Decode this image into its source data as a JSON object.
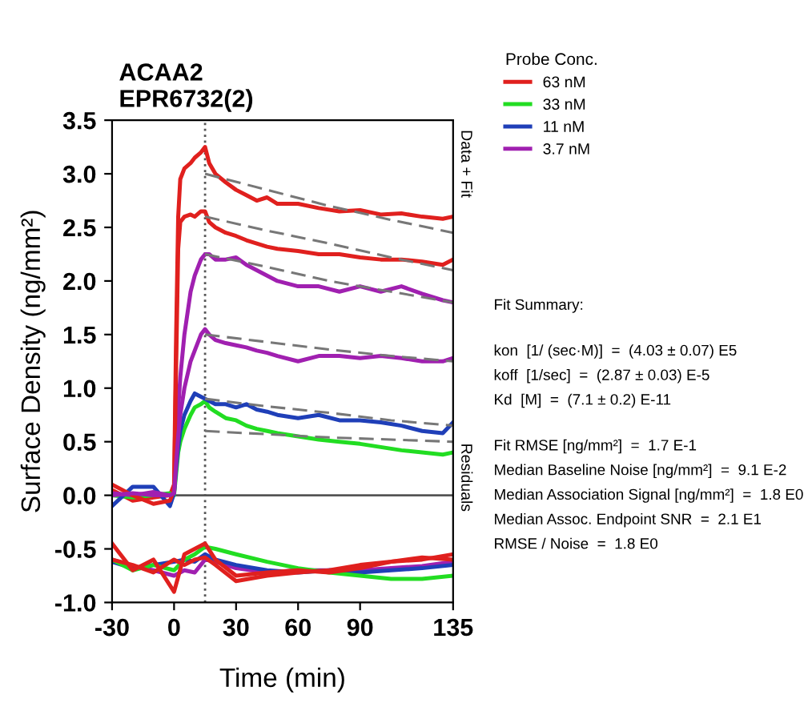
{
  "chart_data": {
    "type": "line",
    "title": "ACAA2\nEPR6732(2)",
    "xlabel": "Time (min)",
    "ylabel": "Surface Density (ng/mm²)",
    "legend_title": "Probe Conc.",
    "legend": "right",
    "grid": false,
    "marker": "none",
    "xlim": [
      -30,
      135
    ],
    "xticks": [
      -30,
      0,
      30,
      60,
      90,
      135
    ],
    "ylim": [
      -1.0,
      3.5
    ],
    "yticks": [
      {
        "value": -1.0,
        "label": "-1.0"
      },
      {
        "value": -0.5,
        "label": "-0.5"
      },
      {
        "value": 0.0,
        "label": "0.0"
      },
      {
        "value": 0.5,
        "label": "0.5"
      },
      {
        "value": 1.0,
        "label": "1.0"
      },
      {
        "value": 1.5,
        "label": "1.5"
      },
      {
        "value": 2.0,
        "label": "2.0"
      },
      {
        "value": 2.5,
        "label": "2.5"
      },
      {
        "value": 3.0,
        "label": "3.0"
      },
      {
        "value": 3.5,
        "label": "3.5"
      }
    ],
    "ref_lines": [
      {
        "axis": "x",
        "value": 15,
        "color": "#555555",
        "line_style": "dotted"
      },
      {
        "axis": "y",
        "value": 0,
        "color": "#555555",
        "line_style": "solid"
      }
    ],
    "annotations": [
      "Data + Fit",
      "Residuals",
      "Fit Summary:",
      "kon  [1/ (sec·M)]  =  (4.03 ± 0.07) E5",
      "koff  [1/sec]  =  (2.87 ± 0.03) E-5",
      "Kd  [M]  =  (7.1 ± 0.2) E-11",
      "Fit RMSE [ng/mm²]  =  1.7 E-1",
      "Median Baseline Noise [ng/mm²]  =  9.1 E-2",
      "Median Association Signal [ng/mm²]  =  1.8 E0",
      "Median Assoc. Endpoint SNR  =  2.1 E1",
      "RMSE / Noise  =  1.8 E0"
    ],
    "series": [
      {
        "name": "63 nM",
        "color": "#e0201e",
        "line_style": "solid",
        "x": [
          -30,
          -20,
          -10,
          -2,
          0,
          1,
          2,
          3,
          5,
          8,
          10,
          13,
          15,
          17,
          20,
          25,
          30,
          35,
          40,
          45,
          50,
          60,
          70,
          80,
          90,
          100,
          110,
          120,
          130,
          135
        ],
        "values": [
          0.05,
          -0.05,
          -0.02,
          0.0,
          0.1,
          1.5,
          2.6,
          2.95,
          3.05,
          3.1,
          3.15,
          3.2,
          3.25,
          3.1,
          3.0,
          2.92,
          2.85,
          2.8,
          2.75,
          2.78,
          2.72,
          2.72,
          2.68,
          2.65,
          2.66,
          2.62,
          2.63,
          2.6,
          2.58,
          2.6
        ]
      },
      {
        "name": "33 nM",
        "color": "#22dd22",
        "line_style": "solid",
        "x": [
          -30,
          -20,
          -10,
          -2,
          0,
          1,
          2,
          3,
          5,
          8,
          10,
          13,
          15,
          17,
          20,
          25,
          30,
          35,
          40,
          45,
          50,
          60,
          70,
          80,
          90,
          100,
          110,
          120,
          130,
          135
        ],
        "values": [
          0.0,
          -0.02,
          0.0,
          0.02,
          0.0,
          0.2,
          0.4,
          0.5,
          0.62,
          0.75,
          0.82,
          0.85,
          0.88,
          0.82,
          0.78,
          0.72,
          0.7,
          0.65,
          0.62,
          0.6,
          0.58,
          0.55,
          0.52,
          0.5,
          0.48,
          0.45,
          0.42,
          0.4,
          0.38,
          0.4
        ]
      },
      {
        "name": "11 nM",
        "color": "#1f3fb8",
        "line_style": "solid",
        "x": [
          -30,
          -20,
          -10,
          -2,
          0,
          1,
          2,
          3,
          5,
          8,
          10,
          13,
          15,
          17,
          20,
          25,
          30,
          35,
          40,
          45,
          50,
          60,
          70,
          80,
          90,
          100,
          110,
          120,
          130,
          135
        ],
        "values": [
          -0.1,
          0.08,
          0.08,
          -0.1,
          0.02,
          0.25,
          0.45,
          0.6,
          0.75,
          0.88,
          0.95,
          0.92,
          0.9,
          0.88,
          0.85,
          0.85,
          0.82,
          0.85,
          0.8,
          0.78,
          0.75,
          0.72,
          0.75,
          0.7,
          0.7,
          0.68,
          0.65,
          0.6,
          0.58,
          0.68
        ]
      },
      {
        "name": "3.7 nM",
        "color": "#a020b0",
        "line_style": "solid",
        "x": [
          -30,
          -20,
          -10,
          -2,
          0,
          1,
          2,
          3,
          5,
          8,
          10,
          13,
          15,
          17,
          20,
          25,
          30,
          35,
          40,
          45,
          50,
          60,
          70,
          80,
          90,
          100,
          110,
          120,
          130,
          135
        ],
        "values": [
          0.02,
          0.0,
          0.03,
          0.0,
          0.02,
          0.4,
          0.8,
          1.1,
          1.5,
          1.9,
          2.05,
          2.2,
          2.25,
          2.25,
          2.2,
          2.2,
          2.22,
          2.15,
          2.1,
          2.05,
          2.0,
          1.95,
          1.95,
          1.9,
          1.95,
          1.9,
          1.95,
          1.88,
          1.82,
          1.8
        ]
      },
      {
        "color": "#e0201e",
        "line_style": "solid",
        "x": [
          -30,
          -20,
          -10,
          -2,
          0,
          1,
          2,
          3,
          5,
          8,
          10,
          13,
          15,
          17,
          20,
          25,
          30,
          35,
          40,
          45,
          50,
          60,
          70,
          80,
          90,
          100,
          110,
          120,
          130,
          135
        ],
        "values": [
          0.1,
          0.0,
          -0.08,
          -0.05,
          0.05,
          1.2,
          2.3,
          2.55,
          2.6,
          2.62,
          2.6,
          2.65,
          2.65,
          2.55,
          2.5,
          2.45,
          2.42,
          2.38,
          2.35,
          2.32,
          2.3,
          2.28,
          2.25,
          2.25,
          2.22,
          2.2,
          2.2,
          2.18,
          2.15,
          2.2
        ]
      },
      {
        "color": "#a020b0",
        "line_style": "solid",
        "x": [
          -30,
          -20,
          -10,
          -2,
          0,
          1,
          2,
          3,
          5,
          8,
          10,
          13,
          15,
          17,
          20,
          25,
          30,
          35,
          40,
          45,
          50,
          60,
          70,
          80,
          90,
          100,
          110,
          120,
          130,
          135
        ],
        "values": [
          0.0,
          0.02,
          0.0,
          0.0,
          0.02,
          0.3,
          0.55,
          0.75,
          1.0,
          1.25,
          1.35,
          1.5,
          1.55,
          1.5,
          1.45,
          1.42,
          1.4,
          1.38,
          1.35,
          1.33,
          1.3,
          1.25,
          1.3,
          1.3,
          1.28,
          1.3,
          1.28,
          1.25,
          1.25,
          1.28
        ]
      },
      {
        "color": "#777777",
        "line_style": "dashed",
        "x": [
          15,
          45,
          75,
          105,
          135
        ],
        "values": [
          3.0,
          2.85,
          2.7,
          2.57,
          2.45
        ]
      },
      {
        "color": "#777777",
        "line_style": "dashed",
        "x": [
          15,
          45,
          75,
          105,
          135
        ],
        "values": [
          2.6,
          2.47,
          2.35,
          2.22,
          2.1
        ]
      },
      {
        "color": "#777777",
        "line_style": "dashed",
        "x": [
          15,
          45,
          75,
          105,
          135
        ],
        "values": [
          2.25,
          2.13,
          2.0,
          1.9,
          1.8
        ]
      },
      {
        "color": "#777777",
        "line_style": "dashed",
        "x": [
          15,
          45,
          75,
          105,
          135
        ],
        "values": [
          1.5,
          1.43,
          1.36,
          1.3,
          1.25
        ]
      },
      {
        "color": "#777777",
        "line_style": "dashed",
        "x": [
          15,
          45,
          75,
          105,
          135
        ],
        "values": [
          0.9,
          0.83,
          0.77,
          0.7,
          0.65
        ]
      },
      {
        "color": "#777777",
        "line_style": "dashed",
        "x": [
          15,
          45,
          75,
          105,
          135
        ],
        "values": [
          0.6,
          0.57,
          0.54,
          0.52,
          0.5
        ]
      },
      {
        "color": "#a020b0",
        "line_style": "solid",
        "x": [
          -30,
          -20,
          -10,
          0,
          5,
          10,
          15,
          20,
          30,
          45,
          60,
          75,
          90,
          105,
          120,
          135
        ],
        "values": [
          -0.6,
          -0.66,
          -0.7,
          -0.75,
          -0.7,
          -0.72,
          -0.6,
          -0.62,
          -0.68,
          -0.72,
          -0.7,
          -0.7,
          -0.7,
          -0.68,
          -0.66,
          -0.62
        ]
      },
      {
        "color": "#1f3fb8",
        "line_style": "solid",
        "x": [
          -30,
          -20,
          -10,
          0,
          5,
          10,
          15,
          20,
          30,
          45,
          60,
          75,
          90,
          105,
          120,
          135
        ],
        "values": [
          -0.62,
          -0.68,
          -0.65,
          -0.62,
          -0.6,
          -0.62,
          -0.55,
          -0.6,
          -0.65,
          -0.7,
          -0.72,
          -0.7,
          -0.72,
          -0.7,
          -0.68,
          -0.65
        ]
      },
      {
        "color": "#22dd22",
        "line_style": "solid",
        "x": [
          -30,
          -20,
          -10,
          0,
          5,
          10,
          15,
          20,
          30,
          45,
          60,
          75,
          90,
          105,
          120,
          135
        ],
        "values": [
          -0.6,
          -0.7,
          -0.65,
          -0.7,
          -0.6,
          -0.55,
          -0.48,
          -0.5,
          -0.55,
          -0.62,
          -0.68,
          -0.72,
          -0.75,
          -0.78,
          -0.78,
          -0.75
        ]
      },
      {
        "color": "#e0201e",
        "line_style": "solid",
        "x": [
          -30,
          -20,
          -10,
          0,
          5,
          10,
          15,
          20,
          30,
          45,
          60,
          75,
          90,
          105,
          120,
          135
        ],
        "values": [
          -0.6,
          -0.65,
          -0.72,
          -0.6,
          -0.65,
          -0.6,
          -0.58,
          -0.65,
          -0.8,
          -0.75,
          -0.72,
          -0.7,
          -0.65,
          -0.62,
          -0.58,
          -0.6
        ]
      },
      {
        "color": "#e0201e",
        "line_style": "solid",
        "x": [
          -30,
          -20,
          -10,
          0,
          5,
          10,
          15,
          20,
          30,
          45,
          60,
          75,
          90,
          105,
          120,
          135
        ],
        "values": [
          -0.45,
          -0.7,
          -0.6,
          -0.9,
          -0.55,
          -0.5,
          -0.45,
          -0.6,
          -0.75,
          -0.72,
          -0.7,
          -0.72,
          -0.68,
          -0.62,
          -0.6,
          -0.55
        ]
      }
    ]
  }
}
